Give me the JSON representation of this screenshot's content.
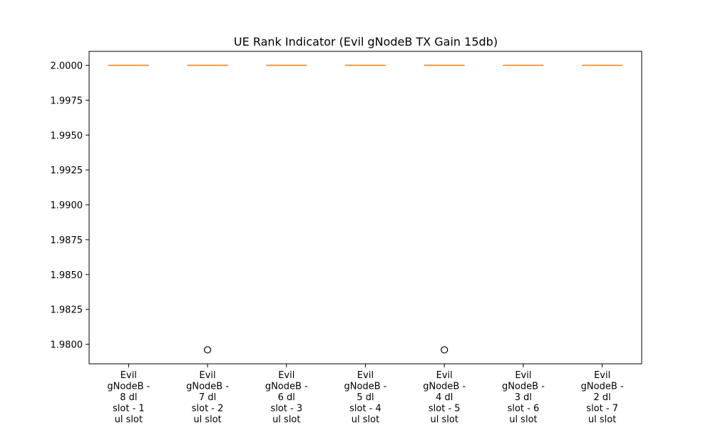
{
  "chart_data": {
    "type": "box",
    "title": "UE Rank Indicator (Evil gNodeB TX Gain 15db)",
    "xlabel": "",
    "ylabel": "",
    "ylim": [
      1.9786,
      2.001
    ],
    "yticks": [
      1.98,
      1.9825,
      1.985,
      1.9875,
      1.99,
      1.9925,
      1.995,
      1.9975,
      2.0
    ],
    "ytick_labels": [
      "1.9800",
      "1.9825",
      "1.9850",
      "1.9875",
      "1.9900",
      "1.9925",
      "1.9950",
      "1.9975",
      "2.0000"
    ],
    "grid": false,
    "categories": [
      [
        "Evil",
        "gNodeB -",
        "8 dl",
        "slot - 1",
        "ul slot"
      ],
      [
        "Evil",
        "gNodeB -",
        "7 dl",
        "slot - 2",
        "ul slot"
      ],
      [
        "Evil",
        "gNodeB -",
        "6 dl",
        "slot - 3",
        "ul slot"
      ],
      [
        "Evil",
        "gNodeB -",
        "5 dl",
        "slot - 4",
        "ul slot"
      ],
      [
        "Evil",
        "gNodeB -",
        "4 dl",
        "slot - 5",
        "ul slot"
      ],
      [
        "Evil",
        "gNodeB -",
        "3 dl",
        "slot - 6",
        "ul slot"
      ],
      [
        "Evil",
        "gNodeB -",
        "2 dl",
        "slot - 7",
        "ul slot"
      ]
    ],
    "boxes": [
      {
        "min": 2.0,
        "q1": 2.0,
        "median": 2.0,
        "q3": 2.0,
        "max": 2.0,
        "outliers": []
      },
      {
        "min": 2.0,
        "q1": 2.0,
        "median": 2.0,
        "q3": 2.0,
        "max": 2.0,
        "outliers": [
          1.9796
        ]
      },
      {
        "min": 2.0,
        "q1": 2.0,
        "median": 2.0,
        "q3": 2.0,
        "max": 2.0,
        "outliers": []
      },
      {
        "min": 2.0,
        "q1": 2.0,
        "median": 2.0,
        "q3": 2.0,
        "max": 2.0,
        "outliers": []
      },
      {
        "min": 2.0,
        "q1": 2.0,
        "median": 2.0,
        "q3": 2.0,
        "max": 2.0,
        "outliers": [
          1.9796
        ]
      },
      {
        "min": 2.0,
        "q1": 2.0,
        "median": 2.0,
        "q3": 2.0,
        "max": 2.0,
        "outliers": []
      },
      {
        "min": 2.0,
        "q1": 2.0,
        "median": 2.0,
        "q3": 2.0,
        "max": 2.0,
        "outliers": []
      }
    ],
    "colors": {
      "median": "#ff7f0e",
      "box": "#000000",
      "axis": "#000000",
      "outlier_edge": "#000000"
    }
  }
}
